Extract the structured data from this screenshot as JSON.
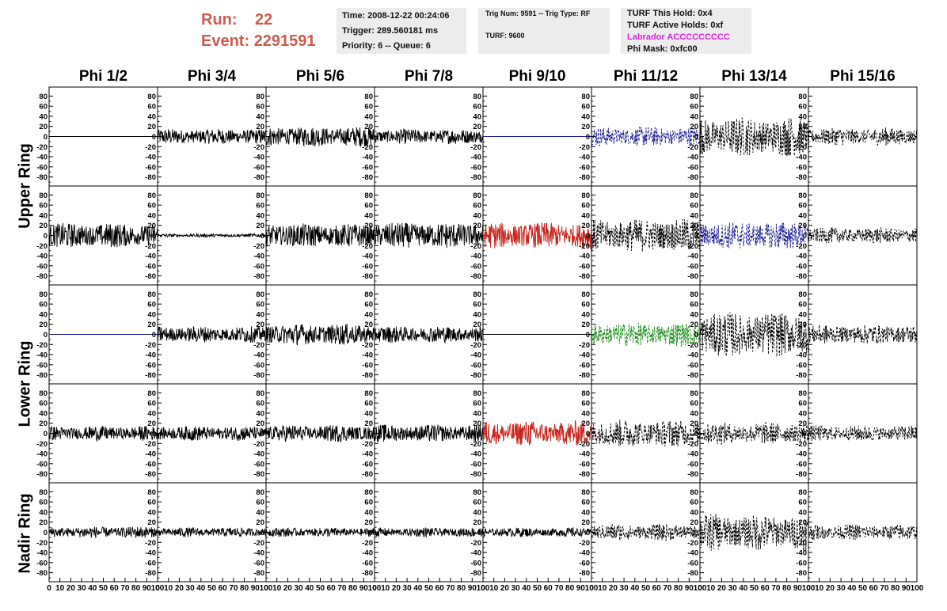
{
  "header": {
    "run_label": "Run:",
    "run_value": "22",
    "event_label": "Event:",
    "event_value": "2291591",
    "run_color": "#cf5a4e"
  },
  "info_box_1": {
    "time": "Time: 2008-12-22 00:24:06",
    "trigger": "Trigger: 289.560181 ms",
    "priority": "Priority: 6 -- Queue: 6"
  },
  "info_box_2": {
    "trig": "Trig Num: 9591 -- Trig Type: RF",
    "turf": "TURF: 9600"
  },
  "info_box_3": {
    "this_hold": "TURF This Hold: 0x4",
    "active_holds": "TURF Active Holds: 0xf",
    "labrador": "Labrador ACCCCCCCCC",
    "phi_mask": "Phi Mask: 0xfc00",
    "labrador_color": "#e61ee0"
  },
  "columns": [
    "Phi 1/2",
    "Phi 3/4",
    "Phi 5/6",
    "Phi 7/8",
    "Phi 9/10",
    "Phi 11/12",
    "Phi 13/14",
    "Phi 15/16"
  ],
  "ring_labels": {
    "upper": "Upper Ring",
    "lower": "Lower Ring",
    "nadir": "Nadir Ring"
  },
  "axes": {
    "y_ticks": [
      "80",
      "60",
      "40",
      "20",
      "0",
      "-20",
      "-40",
      "-60",
      "-80"
    ],
    "x_ticks": [
      "0",
      "10",
      "20",
      "30",
      "40",
      "50",
      "60",
      "70",
      "80",
      "90",
      "100"
    ],
    "ylim": [
      -90,
      90
    ],
    "xlim": [
      0,
      100
    ]
  },
  "chart_data": {
    "type": "line",
    "x_range": [
      0,
      100
    ],
    "y_range": [
      -90,
      90
    ],
    "rows": 5,
    "cols": 8,
    "panels": [
      [
        {
          "style": "flat",
          "color": "#000000",
          "amp": 0
        },
        {
          "style": "solid",
          "color": "#000000",
          "amp": 13
        },
        {
          "style": "solid",
          "color": "#000000",
          "amp": 17
        },
        {
          "style": "solid",
          "color": "#000000",
          "amp": 13
        },
        {
          "style": "flat",
          "color": "#1a1aa0",
          "amp": 0
        },
        {
          "style": "dashed",
          "color": "#1a1a90",
          "amp": 18
        },
        {
          "style": "dashed",
          "color": "#000000",
          "amp": 38
        },
        {
          "style": "dashed",
          "color": "#000000",
          "amp": 18
        }
      ],
      [
        {
          "style": "solid",
          "color": "#000000",
          "amp": 22
        },
        {
          "style": "solid",
          "color": "#000000",
          "amp": 3
        },
        {
          "style": "solid",
          "color": "#000000",
          "amp": 20
        },
        {
          "style": "solid",
          "color": "#000000",
          "amp": 22
        },
        {
          "style": "solid",
          "color": "#c8241e",
          "amp": 22
        },
        {
          "style": "dashed",
          "color": "#000000",
          "amp": 28
        },
        {
          "style": "dashed",
          "color": "#1a1a90",
          "amp": 24
        },
        {
          "style": "dashed",
          "color": "#000000",
          "amp": 14
        }
      ],
      [
        {
          "style": "flat",
          "color": "#1a1aa0",
          "amp": 0
        },
        {
          "style": "solid",
          "color": "#000000",
          "amp": 16
        },
        {
          "style": "solid",
          "color": "#000000",
          "amp": 20
        },
        {
          "style": "solid",
          "color": "#000000",
          "amp": 15
        },
        {
          "style": "flat",
          "color": "#000000",
          "amp": 0
        },
        {
          "style": "dashed",
          "color": "#1e8c1e",
          "amp": 20
        },
        {
          "style": "dashed",
          "color": "#000000",
          "amp": 38
        },
        {
          "style": "dashed",
          "color": "#000000",
          "amp": 16
        }
      ],
      [
        {
          "style": "solid",
          "color": "#000000",
          "amp": 16
        },
        {
          "style": "solid",
          "color": "#000000",
          "amp": 16
        },
        {
          "style": "solid",
          "color": "#000000",
          "amp": 18
        },
        {
          "style": "solid",
          "color": "#000000",
          "amp": 18
        },
        {
          "style": "solid",
          "color": "#c8241e",
          "amp": 25
        },
        {
          "style": "dashed",
          "color": "#000000",
          "amp": 26
        },
        {
          "style": "dashed",
          "color": "#000000",
          "amp": 20
        },
        {
          "style": "dashed",
          "color": "#000000",
          "amp": 14
        }
      ],
      [
        {
          "style": "solid",
          "color": "#000000",
          "amp": 12
        },
        {
          "style": "solid",
          "color": "#000000",
          "amp": 10
        },
        {
          "style": "solid",
          "color": "#000000",
          "amp": 10
        },
        {
          "style": "solid",
          "color": "#000000",
          "amp": 10
        },
        {
          "style": "solid",
          "color": "#000000",
          "amp": 10
        },
        {
          "style": "dashed",
          "color": "#000000",
          "amp": 18
        },
        {
          "style": "dashed",
          "color": "#000000",
          "amp": 38
        },
        {
          "style": "dashed",
          "color": "#000000",
          "amp": 16
        }
      ]
    ]
  }
}
